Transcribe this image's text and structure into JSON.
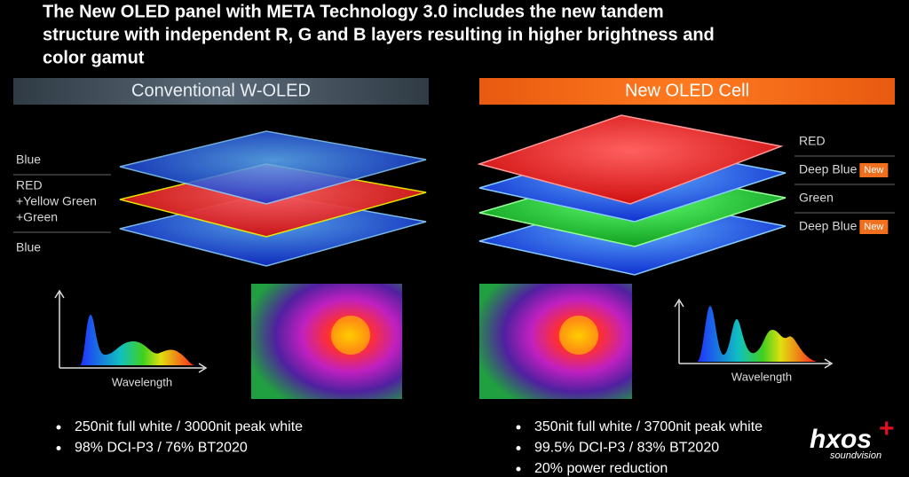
{
  "title_lines": [
    "The New OLED panel with META Technology 3.0 includes the new tandem",
    "structure with independent R, G and B layers resulting in higher brightness and",
    "color gamut"
  ],
  "left_panel": {
    "header": "Conventional W-OLED",
    "layers": [
      {
        "lines": [
          "Blue"
        ]
      },
      {
        "lines": [
          "RED",
          "+Yellow Green",
          "+Green"
        ]
      },
      {
        "lines": [
          "Blue"
        ]
      }
    ],
    "axis_label": "Wavelength",
    "bullets": [
      "250nit full white / 3000nit peak white",
      "98% DCI-P3 / 76% BT2020"
    ]
  },
  "right_panel": {
    "header": "New OLED Cell",
    "layers": [
      {
        "text": "RED"
      },
      {
        "text": "Deep Blue",
        "badge": "New"
      },
      {
        "text": "Green"
      },
      {
        "text": "Deep Blue",
        "badge": "New"
      }
    ],
    "axis_label": "Wavelength",
    "bullets": [
      "350nit full white / 3700nit peak white",
      "99.5% DCI-P3 / 83% BT2020",
      "20% power reduction"
    ]
  },
  "logo": {
    "brand": "hxos",
    "plus": "+",
    "tagline": "soundvision"
  }
}
